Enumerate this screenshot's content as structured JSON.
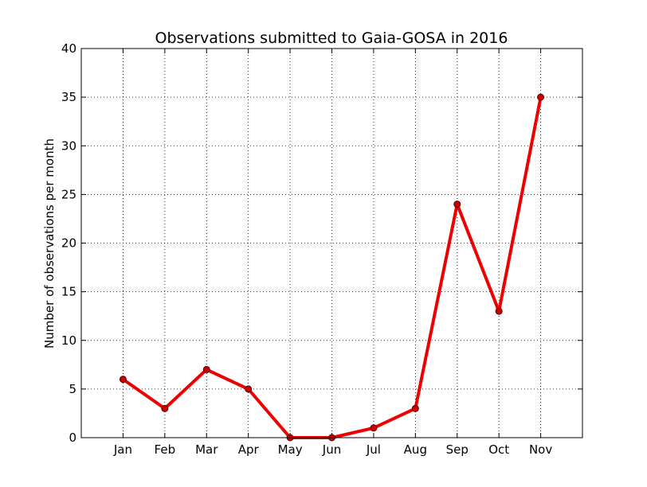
{
  "chart_data": {
    "type": "line",
    "title": "Observations submitted to Gaia-GOSA in 2016",
    "xlabel": "",
    "ylabel": "Number of observations per month",
    "categories": [
      "Jan",
      "Feb",
      "Mar",
      "Apr",
      "May",
      "Jun",
      "Jul",
      "Aug",
      "Sep",
      "Oct",
      "Nov"
    ],
    "series": [
      {
        "values": [
          6,
          3,
          7,
          5,
          0,
          0,
          1,
          3,
          24,
          13,
          35
        ]
      }
    ],
    "ylim": [
      0,
      40
    ],
    "yticks": [
      0,
      5,
      10,
      15,
      20,
      25,
      30,
      35,
      40
    ],
    "grid": true,
    "line_color": "#ee0000",
    "marker_color": "#cc0000"
  }
}
